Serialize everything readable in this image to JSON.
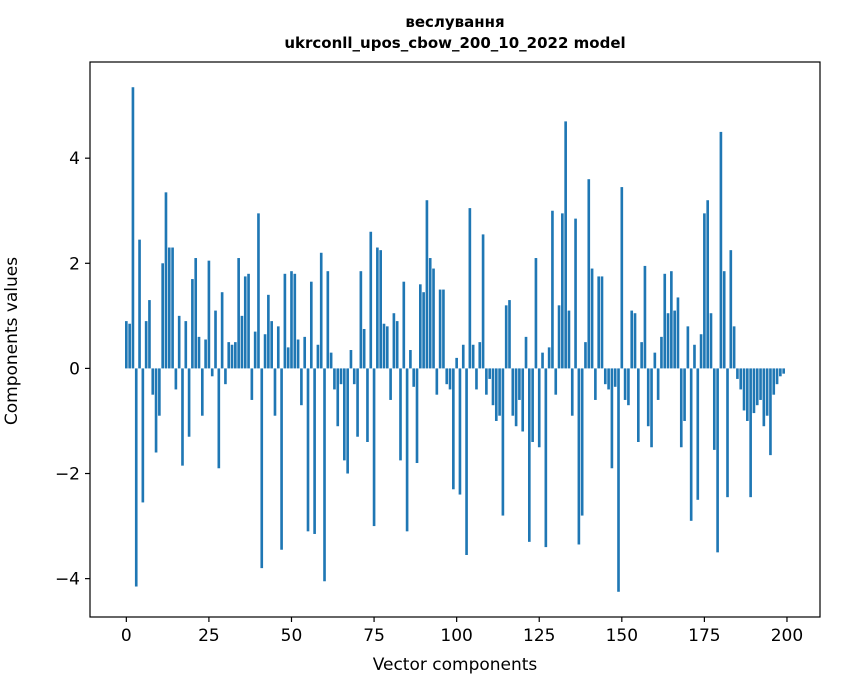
{
  "chart_data": {
    "type": "bar",
    "title": "веслування",
    "subtitle": "ukrconll_upos_cbow_200_10_2022 model",
    "xlabel": "Vector components",
    "ylabel": "Components values",
    "bar_color": "#1f77b4",
    "x_ticks": [
      0,
      25,
      50,
      75,
      100,
      125,
      150,
      175,
      200
    ],
    "y_ticks": [
      -4,
      -2,
      0,
      2,
      4
    ],
    "xlim": [
      -11.0,
      210.0
    ],
    "ylim": [
      -4.73,
      5.83
    ],
    "grid": false,
    "legend": "none",
    "n_components": 200,
    "values": [
      0.9,
      0.85,
      5.35,
      -4.15,
      2.45,
      -2.55,
      0.9,
      1.3,
      -0.5,
      -1.6,
      -0.9,
      2.0,
      3.35,
      2.3,
      2.3,
      -0.4,
      1.0,
      -1.85,
      0.9,
      -1.3,
      1.7,
      2.1,
      0.6,
      -0.9,
      0.55,
      2.05,
      -0.15,
      1.1,
      -1.9,
      1.45,
      -0.3,
      0.5,
      0.45,
      0.5,
      2.1,
      1.0,
      1.75,
      1.8,
      -0.6,
      0.7,
      2.95,
      -3.8,
      0.65,
      1.4,
      0.9,
      -0.9,
      0.8,
      -3.45,
      1.8,
      0.4,
      1.85,
      1.8,
      0.55,
      -0.7,
      0.6,
      -3.1,
      1.65,
      -3.15,
      0.45,
      2.2,
      -4.05,
      1.85,
      0.3,
      -0.4,
      -1.1,
      -0.3,
      -1.75,
      -2.0,
      0.35,
      -0.3,
      -1.3,
      1.85,
      0.75,
      -1.4,
      2.6,
      -3.0,
      2.3,
      2.25,
      0.85,
      0.8,
      -0.6,
      1.05,
      0.9,
      -1.75,
      1.65,
      -3.1,
      0.35,
      -0.35,
      -1.8,
      1.6,
      1.45,
      3.2,
      2.1,
      1.9,
      -0.5,
      1.5,
      1.5,
      -0.3,
      -0.4,
      -2.3,
      0.2,
      -2.4,
      0.45,
      -3.55,
      3.05,
      0.45,
      -0.4,
      0.5,
      2.55,
      -0.5,
      -0.2,
      -0.7,
      -1.0,
      -0.9,
      -2.8,
      1.2,
      1.3,
      -0.9,
      -1.1,
      -0.6,
      -1.2,
      0.6,
      -3.3,
      -1.4,
      2.1,
      -1.5,
      0.3,
      -3.4,
      0.4,
      3.0,
      -0.5,
      1.2,
      2.95,
      4.7,
      1.1,
      -0.9,
      2.85,
      -3.35,
      -2.8,
      0.5,
      3.6,
      1.9,
      -0.6,
      1.75,
      1.75,
      -0.3,
      -0.4,
      -1.9,
      -0.35,
      -4.25,
      3.45,
      -0.6,
      -0.7,
      1.1,
      1.05,
      -1.4,
      0.5,
      1.95,
      -1.1,
      -1.5,
      0.3,
      -0.6,
      0.6,
      1.8,
      1.05,
      1.85,
      1.1,
      1.35,
      -1.5,
      -1.0,
      0.8,
      -2.9,
      0.45,
      -2.5,
      0.65,
      2.95,
      3.2,
      1.05,
      -1.55,
      -3.5,
      4.5,
      1.85,
      -2.45,
      2.25,
      0.8,
      -0.2,
      -0.4,
      -0.8,
      -1.0,
      -2.45,
      -0.85,
      -0.7,
      -0.6,
      -1.1,
      -0.9,
      -1.65,
      -0.5,
      -0.3,
      -0.15,
      -0.1
    ]
  }
}
